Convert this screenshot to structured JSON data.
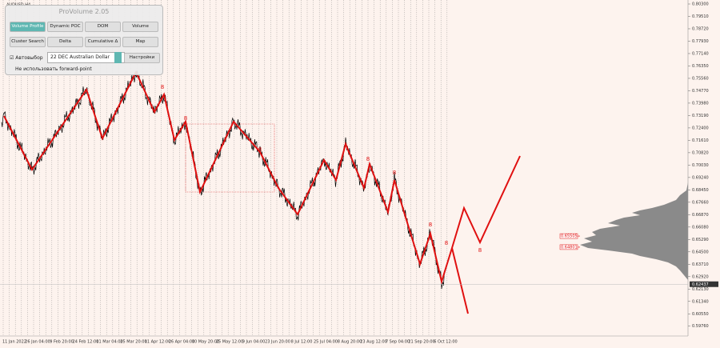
{
  "chart_data": {
    "type": "price-chart",
    "symbol": "AUDUSD,H4",
    "ylim": [
      0.59135,
      0.80555
    ],
    "yticks": [
      {
        "value": 0.803,
        "label": "0.80300"
      },
      {
        "value": 0.7951,
        "label": "0.79510"
      },
      {
        "value": 0.7872,
        "label": "0.78720"
      },
      {
        "value": 0.7793,
        "label": "0.77930"
      },
      {
        "value": 0.7714,
        "label": "0.77140"
      },
      {
        "value": 0.7635,
        "label": "0.76350"
      },
      {
        "value": 0.7556,
        "label": "0.75560"
      },
      {
        "value": 0.7477,
        "label": "0.74770"
      },
      {
        "value": 0.7398,
        "label": "0.73980"
      },
      {
        "value": 0.7319,
        "label": "0.73190"
      },
      {
        "value": 0.724,
        "label": "0.72400"
      },
      {
        "value": 0.7161,
        "label": "0.71610"
      },
      {
        "value": 0.7082,
        "label": "0.70820"
      },
      {
        "value": 0.7003,
        "label": "0.70030"
      },
      {
        "value": 0.6924,
        "label": "0.69240"
      },
      {
        "value": 0.6845,
        "label": "0.68450"
      },
      {
        "value": 0.6766,
        "label": "0.67660"
      },
      {
        "value": 0.6687,
        "label": "0.66870"
      },
      {
        "value": 0.6608,
        "label": "0.66080"
      },
      {
        "value": 0.6529,
        "label": "0.65290"
      },
      {
        "value": 0.645,
        "label": "0.64500"
      },
      {
        "value": 0.6371,
        "label": "0.63710"
      },
      {
        "value": 0.6292,
        "label": "0.62920"
      },
      {
        "value": 0.6213,
        "label": "0.62130"
      },
      {
        "value": 0.6134,
        "label": "0.61340"
      },
      {
        "value": 0.6055,
        "label": "0.60550"
      },
      {
        "value": 0.5976,
        "label": "0.59760"
      }
    ],
    "current_price": {
      "value": 0.62437,
      "label": "0.62437"
    },
    "levels": [
      {
        "value": 0.65505,
        "label": "0.65505"
      },
      {
        "value": 0.64801,
        "label": "0.64801"
      }
    ],
    "categories": [
      "11 Jan 2022",
      "26 Jan 04:00",
      "9 Feb 20:00",
      "24 Feb 12:00",
      "11 Mar 04:00",
      "25 Mar 20:00",
      "11 Apr 12:00",
      "26 Apr 04:00",
      "10 May 20:00",
      "25 May 12:00",
      "9 Jun 04:00",
      "23 Jun 20:00",
      "8 Jul 12:00",
      "25 Jul 04:00",
      "8 Aug 20:00",
      "23 Aug 12:00",
      "7 Sep 04:00",
      "21 Sep 20:00",
      "6 Oct 12:00"
    ],
    "wave_marks": [
      "8",
      "8",
      "8",
      "8",
      "8",
      "8",
      "8",
      "8"
    ]
  },
  "panel": {
    "title": "ProVolume 2.05",
    "buttons": [
      "Volume Profile",
      "Dynamic POC",
      "DOM",
      "Volume",
      "Cluster Search",
      "Delta",
      "Cumulative Δ",
      "Map"
    ],
    "auto_select": "Автовыбор",
    "instrument": "22 DEC Australian Dollar",
    "settings": "Настройки",
    "forward_point": "Не использовать forward-point"
  }
}
